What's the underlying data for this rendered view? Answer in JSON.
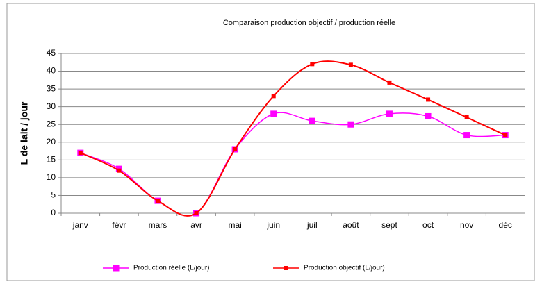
{
  "chart_data": {
    "type": "line",
    "title": "Comparaison production objectif / production réelle",
    "y_label": "L de lait / jour",
    "categories": [
      "janv",
      "févr",
      "mars",
      "avr",
      "mai",
      "juin",
      "juil",
      "août",
      "sept",
      "oct",
      "nov",
      "déc"
    ],
    "series": [
      {
        "name": "Production réelle (L/jour)",
        "color": "#ff00ff",
        "values": [
          17,
          12.5,
          3.5,
          0,
          18,
          28,
          26,
          25,
          28,
          27.3,
          22,
          22
        ]
      },
      {
        "name": "Production objectif (L/jour)",
        "color": "#ff0000",
        "values": [
          17,
          12,
          3.5,
          0,
          18,
          33,
          42,
          41.8,
          36.8,
          32,
          27,
          22
        ]
      }
    ],
    "ylim": [
      0,
      45
    ],
    "yticks": [
      0,
      5,
      10,
      15,
      20,
      25,
      30,
      35,
      40,
      45
    ],
    "grid": true
  }
}
